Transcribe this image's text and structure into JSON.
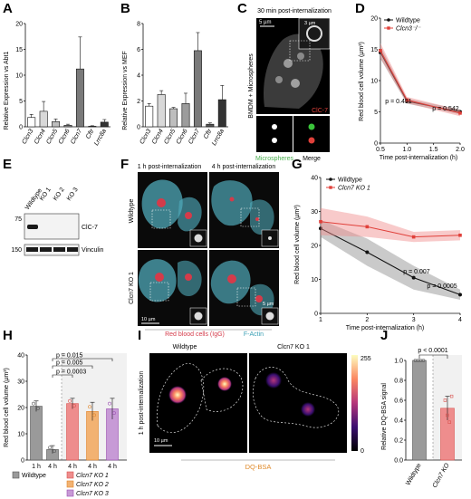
{
  "panels": {
    "A": {
      "letter": "A",
      "ylabel": "Relative Expression vs Abt1",
      "ylim": [
        0,
        20
      ],
      "yticks": [
        "0",
        "5",
        "10",
        "15",
        "20"
      ],
      "chart_data": {
        "type": "bar",
        "categories": [
          "Clcn3",
          "Clcn4",
          "Clcn5",
          "Clcn6",
          "Clcn7",
          "Cftr",
          "Lrrc8a"
        ],
        "values": [
          1.8,
          3.0,
          1.0,
          0.3,
          11.2,
          0.1,
          0.9
        ],
        "errors": [
          0.6,
          1.9,
          0.5,
          0.2,
          6.2,
          0.1,
          0.5
        ],
        "ylim": [
          0,
          20
        ]
      }
    },
    "B": {
      "letter": "B",
      "ylabel": "Relative Expression vs MEF",
      "ylim": [
        0,
        8
      ],
      "yticks": [
        "0",
        "2",
        "4",
        "6",
        "8"
      ],
      "chart_data": {
        "type": "bar",
        "categories": [
          "Clcn3",
          "Clcn4",
          "Clcn5",
          "Clcn6",
          "Clcn7",
          "Cftr",
          "Lrrc8a"
        ],
        "values": [
          1.6,
          2.5,
          1.4,
          1.8,
          5.9,
          0.2,
          2.1
        ],
        "errors": [
          0.2,
          0.3,
          0.1,
          0.8,
          1.4,
          0.1,
          1.1
        ],
        "ylim": [
          0,
          8
        ]
      }
    },
    "C": {
      "letter": "C",
      "title": "30 min post-internalization",
      "scale_main": "5 µm",
      "scale_inset": "3 µm",
      "side_label": "BMDM + Microspheres",
      "channel_label": "ClC-7",
      "bottom_left": "Microspheres",
      "bottom_right": "Merge"
    },
    "D": {
      "letter": "D",
      "ylabel": "Red blood cell volume (µm³)",
      "xlabel": "Time post-internalization (h)",
      "yticks": [
        "0",
        "5",
        "10",
        "15",
        "20"
      ],
      "xticks": [
        "0.5",
        "1.0",
        "1.5",
        "2.0"
      ],
      "legend": [
        "Wildtype",
        "Clcn3⁻/⁻"
      ],
      "pvals": [
        "p = 0.451",
        "p = 0.542"
      ],
      "chart_data": {
        "type": "line",
        "x": [
          0.5,
          1.0,
          2.0
        ],
        "series": [
          {
            "name": "Wildtype",
            "values": [
              14.5,
              6.7,
              5.0
            ],
            "band": [
              1.0,
              0.4,
              0.4
            ],
            "color": "#111111"
          },
          {
            "name": "Clcn3⁻/⁻",
            "values": [
              14.8,
              6.9,
              4.8
            ],
            "band": [
              1.2,
              0.5,
              0.5
            ],
            "color": "#e0403a"
          }
        ],
        "xlim": [
          0.5,
          2.0
        ],
        "ylim": [
          0,
          20
        ]
      }
    },
    "E": {
      "letter": "E",
      "lanes": [
        "Wildtype",
        "KO 1",
        "KO 2",
        "KO 3"
      ],
      "markers": [
        "75",
        "150"
      ],
      "bands": [
        "ClC-7",
        "Vinculin"
      ]
    },
    "F": {
      "letter": "F",
      "col1": "1 h post-internalization",
      "col2": "4 h post-internalization",
      "row1": "Wildtype",
      "row2": "Clcn7 KO 1",
      "scale_main": "10 µm",
      "scale_inset": "5 µm",
      "legend_red": "Red blood cells (IgG)",
      "legend_cyan": "F-Actin"
    },
    "G": {
      "letter": "G",
      "ylabel": "Red blood cell volume (µm³)",
      "xlabel": "Time post-internalization (h)",
      "yticks": [
        "0",
        "10",
        "20",
        "30",
        "40"
      ],
      "xticks": [
        "1",
        "2",
        "3",
        "4"
      ],
      "legend": [
        "Wildtype",
        "Clcn7 KO 1"
      ],
      "pvals": [
        "p = 0.007",
        "p = 0.0005"
      ],
      "chart_data": {
        "type": "line",
        "x": [
          1,
          2,
          3,
          4
        ],
        "series": [
          {
            "name": "Wildtype",
            "values": [
              25,
              18,
              10.5,
              5.5
            ],
            "band": [
              2.5,
              4,
              3.5,
              1.5
            ],
            "color": "#111111"
          },
          {
            "name": "Clcn7 KO 1",
            "values": [
              27,
              25.5,
              22.5,
              23
            ],
            "band": [
              4,
              3,
              1.5,
              1.5
            ],
            "color": "#e0403a"
          }
        ],
        "xlim": [
          1,
          4
        ],
        "ylim": [
          0,
          40
        ]
      }
    },
    "H": {
      "letter": "H",
      "ylabel": "Red blood cell volume (µm³)",
      "yticks": [
        "0",
        "10",
        "20",
        "30",
        "40"
      ],
      "pvals": [
        "p = 0.015",
        "p = 0.005",
        "p = 0.0003"
      ],
      "legend": [
        "Wildtype",
        "Clcn7 KO 1",
        "Clcn7 KO 2",
        "Clcn7 KO 3"
      ],
      "chart_data": {
        "type": "bar",
        "categories": [
          "1 h",
          "4 h",
          "4 h",
          "4 h",
          "4 h"
        ],
        "values": [
          20.5,
          4.0,
          21.5,
          18.5,
          19.5
        ],
        "errors": [
          2.0,
          1.5,
          2.0,
          3.5,
          4.0
        ],
        "colors": [
          "#9a9a9a",
          "#9a9a9a",
          "#ee8d8d",
          "#f2b272",
          "#c79ad6"
        ],
        "ylim": [
          0,
          40
        ]
      }
    },
    "I": {
      "letter": "I",
      "left_title": "Wildtype",
      "right_title": "Clcn7 KO 1",
      "side_label": "1 h post-internalization",
      "scale": "10 µm",
      "probe": "DQ-BSA",
      "cbar_max": "255",
      "cbar_min": "0"
    },
    "J": {
      "letter": "J",
      "ylabel": "Relative DQ-BSA signal",
      "pval": "p < 0.0001",
      "yticks": [
        "0.0",
        "0.2",
        "0.4",
        "0.6",
        "0.8",
        "1.0"
      ],
      "chart_data": {
        "type": "bar",
        "categories": [
          "Wildtype",
          "Clcn7 KO"
        ],
        "values": [
          1.0,
          0.52
        ],
        "errors": [
          0.0,
          0.12
        ],
        "colors": [
          "#9a9a9a",
          "#ee8d8d"
        ],
        "ylim": [
          0,
          1.0
        ]
      }
    }
  }
}
